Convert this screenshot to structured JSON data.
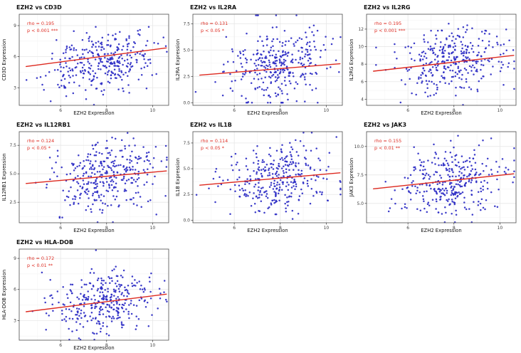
{
  "figure": {
    "background": "#ffffff",
    "description": "Grid of 7 correlation scatter plots of EZH2 expression vs immune genes"
  },
  "colors": {
    "point": "#2b2bc4",
    "trend": "#dd2a20",
    "annotation": "#dd2a20",
    "grid_major": "#e7e7e7",
    "grid_minor": "#f3f3f3",
    "panel_border": "#4d4d4d",
    "tick_label": "#404040",
    "axis_title": "#111111",
    "title": "#111111"
  },
  "chart_data": [
    {
      "type": "scatter",
      "title": "EZH2 vs CD3D",
      "xlabel": "EZH2 Expression",
      "ylabel": "CD3D Expression",
      "annotation": {
        "rho": "rho = 0.195",
        "p": "p < 0.001 ***"
      },
      "xlim": [
        4.2,
        10.7
      ],
      "ylim": [
        1.3,
        10.1
      ],
      "xticks": [
        6,
        8,
        10
      ],
      "xtick_labels": [
        "6",
        "8",
        "10"
      ],
      "yticks": [
        3,
        6,
        9
      ],
      "ytick_labels": [
        "3",
        "6",
        "9"
      ],
      "trend": {
        "x1": 4.5,
        "y1": 5.05,
        "x2": 10.6,
        "y2": 6.85
      },
      "points": {
        "n": 330,
        "x_mean": 7.9,
        "x_sd": 1.1,
        "y_mean": 5.6,
        "y_sd": 1.5,
        "rho": 0.195,
        "seed": 101
      },
      "grid": {
        "row": 0,
        "col": 0
      }
    },
    {
      "type": "scatter",
      "title": "EZH2 vs IL2RA",
      "xlabel": "EZH2 Expression",
      "ylabel": "IL2RA Expression",
      "annotation": {
        "rho": "rho = 0.131",
        "p": "p < 0.05 *"
      },
      "xlim": [
        4.2,
        10.7
      ],
      "ylim": [
        -0.25,
        8.4
      ],
      "xticks": [
        6,
        8,
        10
      ],
      "xtick_labels": [
        "6",
        "8",
        "10"
      ],
      "yticks": [
        0,
        2.5,
        5,
        7.5
      ],
      "ytick_labels": [
        "0.0",
        "2.5",
        "5.0",
        "7.5"
      ],
      "trend": {
        "x1": 4.5,
        "y1": 2.62,
        "x2": 10.6,
        "y2": 3.7
      },
      "points": {
        "n": 330,
        "x_mean": 7.9,
        "x_sd": 1.1,
        "y_mean": 3.5,
        "y_sd": 1.75,
        "rho": 0.131,
        "seed": 102,
        "floor": 0
      },
      "grid": {
        "row": 0,
        "col": 1
      }
    },
    {
      "type": "scatter",
      "title": "EZH2 vs IL2RG",
      "xlabel": "EZH2 Expression",
      "ylabel": "IL2RG Expression",
      "annotation": {
        "rho": "rho = 0.195",
        "p": "p < 0.001 ***"
      },
      "xlim": [
        4.2,
        10.7
      ],
      "ylim": [
        3.3,
        13.7
      ],
      "xticks": [
        6,
        8,
        10
      ],
      "xtick_labels": [
        "6",
        "8",
        "10"
      ],
      "yticks": [
        4,
        6,
        8,
        10,
        12
      ],
      "ytick_labels": [
        "4",
        "6",
        "8",
        "10",
        "12"
      ],
      "trend": {
        "x1": 4.5,
        "y1": 7.2,
        "x2": 10.6,
        "y2": 9.0
      },
      "points": {
        "n": 330,
        "x_mean": 7.9,
        "x_sd": 1.1,
        "y_mean": 8.3,
        "y_sd": 1.8,
        "rho": 0.195,
        "seed": 103
      },
      "grid": {
        "row": 0,
        "col": 2
      }
    },
    {
      "type": "scatter",
      "title": "EZH2 vs IL12RB1",
      "xlabel": "EZH2 Expression",
      "ylabel": "IL12RB1 Expression",
      "annotation": {
        "rho": "rho = 0.124",
        "p": "p < 0.05 *"
      },
      "xlim": [
        4.2,
        10.7
      ],
      "ylim": [
        0.7,
        8.7
      ],
      "xticks": [
        6,
        8,
        10
      ],
      "xtick_labels": [
        "6",
        "8",
        "10"
      ],
      "yticks": [
        2.5,
        5,
        7.5
      ],
      "ytick_labels": [
        "2.5",
        "5.0",
        "7.5"
      ],
      "trend": {
        "x1": 4.5,
        "y1": 4.15,
        "x2": 10.6,
        "y2": 5.25
      },
      "points": {
        "n": 330,
        "x_mean": 7.9,
        "x_sd": 1.1,
        "y_mean": 4.9,
        "y_sd": 1.5,
        "rho": 0.124,
        "seed": 104
      },
      "grid": {
        "row": 1,
        "col": 0
      }
    },
    {
      "type": "scatter",
      "title": "EZH2 vs IL1B",
      "xlabel": "EZH2 Expression",
      "ylabel": "IL1B Expression",
      "annotation": {
        "rho": "rho = 0.114",
        "p": "p < 0.05 *"
      },
      "xlim": [
        4.2,
        10.7
      ],
      "ylim": [
        -0.25,
        8.6
      ],
      "xticks": [
        6,
        8,
        10
      ],
      "xtick_labels": [
        "6",
        "8",
        "10"
      ],
      "yticks": [
        0,
        2.5,
        5,
        7.5
      ],
      "ytick_labels": [
        "0.0",
        "2.5",
        "5.0",
        "7.5"
      ],
      "trend": {
        "x1": 4.5,
        "y1": 3.4,
        "x2": 10.6,
        "y2": 4.6
      },
      "points": {
        "n": 330,
        "x_mean": 7.9,
        "x_sd": 1.1,
        "y_mean": 4.1,
        "y_sd": 1.7,
        "rho": 0.114,
        "seed": 105,
        "floor": 0
      },
      "grid": {
        "row": 1,
        "col": 1
      }
    },
    {
      "type": "scatter",
      "title": "EZH2 vs JAK3",
      "xlabel": "EZH2 Expression",
      "ylabel": "JAK3 Expression",
      "annotation": {
        "rho": "rho = 0.155",
        "p": "p < 0.01 **"
      },
      "xlim": [
        4.2,
        10.7
      ],
      "ylim": [
        3.3,
        11.3
      ],
      "xticks": [
        6,
        8,
        10
      ],
      "xtick_labels": [
        "6",
        "8",
        "10"
      ],
      "yticks": [
        5,
        7.5,
        10
      ],
      "ytick_labels": [
        "5.0",
        "7.5",
        "10.0"
      ],
      "trend": {
        "x1": 4.5,
        "y1": 6.28,
        "x2": 10.6,
        "y2": 7.6
      },
      "points": {
        "n": 330,
        "x_mean": 7.9,
        "x_sd": 1.1,
        "y_mean": 7.0,
        "y_sd": 1.45,
        "rho": 0.155,
        "seed": 106
      },
      "grid": {
        "row": 1,
        "col": 2
      }
    },
    {
      "type": "scatter",
      "title": "EZH2 vs HLA-DOB",
      "xlabel": "EZH2 Expression",
      "ylabel": "HLA-DOB Expression",
      "annotation": {
        "rho": "rho = 0.172",
        "p": "p < 0.01 **"
      },
      "xlim": [
        4.2,
        10.7
      ],
      "ylim": [
        1.1,
        9.9
      ],
      "xticks": [
        6,
        8,
        10
      ],
      "xtick_labels": [
        "6",
        "8",
        "10"
      ],
      "yticks": [
        3,
        6,
        9
      ],
      "ytick_labels": [
        "3",
        "6",
        "9"
      ],
      "trend": {
        "x1": 4.5,
        "y1": 3.85,
        "x2": 10.6,
        "y2": 5.55
      },
      "points": {
        "n": 330,
        "x_mean": 7.9,
        "x_sd": 1.1,
        "y_mean": 4.9,
        "y_sd": 1.5,
        "rho": 0.172,
        "seed": 107
      },
      "grid": {
        "row": 2,
        "col": 0
      }
    }
  ]
}
